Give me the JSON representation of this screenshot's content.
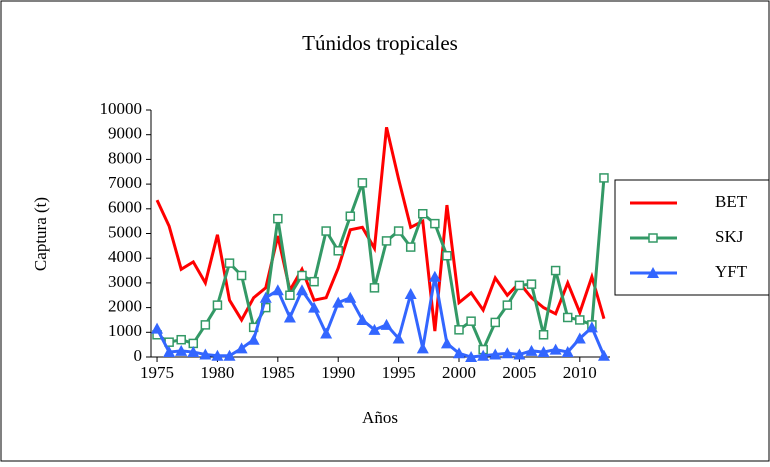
{
  "chart_data": {
    "type": "line",
    "title": "Túnidos tropicales",
    "x_label": "Años",
    "y_label": "Captura (t)",
    "x": [
      1975,
      1976,
      1977,
      1978,
      1979,
      1980,
      1981,
      1982,
      1983,
      1984,
      1985,
      1986,
      1987,
      1988,
      1989,
      1990,
      1991,
      1992,
      1993,
      1994,
      1995,
      1996,
      1997,
      1998,
      1999,
      2000,
      2001,
      2002,
      2003,
      2004,
      2005,
      2006,
      2007,
      2008,
      2009,
      2010,
      2011,
      2012
    ],
    "series": [
      {
        "name": "BET",
        "color": "#ff0000",
        "marker": "none",
        "values": [
          6350,
          5300,
          3550,
          3850,
          3000,
          4950,
          2300,
          1500,
          2400,
          2800,
          4900,
          2700,
          3550,
          2300,
          2400,
          3600,
          5150,
          5250,
          4400,
          9300,
          7200,
          5250,
          5500,
          1050,
          6150,
          2200,
          2600,
          1900,
          3200,
          2500,
          3000,
          2400,
          2000,
          1750,
          3000,
          1800,
          3250,
          1550
        ]
      },
      {
        "name": "SKJ",
        "color": "#339966",
        "marker": "square",
        "values": [
          900,
          600,
          700,
          550,
          1300,
          2100,
          3800,
          3300,
          1200,
          2000,
          5600,
          2500,
          3300,
          3050,
          5100,
          4300,
          5700,
          7050,
          2800,
          4700,
          5100,
          4450,
          5800,
          5400,
          4100,
          1100,
          1450,
          300,
          1400,
          2100,
          2900,
          2950,
          900,
          3500,
          1600,
          1500,
          1300,
          7250
        ]
      },
      {
        "name": "YFT",
        "color": "#3366ff",
        "marker": "triangle",
        "values": [
          1150,
          200,
          250,
          200,
          100,
          50,
          50,
          350,
          700,
          2400,
          2700,
          1600,
          2700,
          2000,
          950,
          2200,
          2400,
          1500,
          1100,
          1300,
          750,
          2550,
          350,
          3250,
          550,
          150,
          0,
          50,
          100,
          150,
          100,
          250,
          200,
          300,
          200,
          750,
          1200,
          50
        ]
      }
    ],
    "xlim": [
      1974.5,
      2012.5
    ],
    "xticks": [
      1975,
      1980,
      1985,
      1990,
      1995,
      2000,
      2005,
      2010
    ],
    "ylim": [
      0,
      10000
    ],
    "yticks": [
      0,
      1000,
      2000,
      3000,
      4000,
      5000,
      6000,
      7000,
      8000,
      9000,
      10000
    ],
    "legend": "right"
  }
}
